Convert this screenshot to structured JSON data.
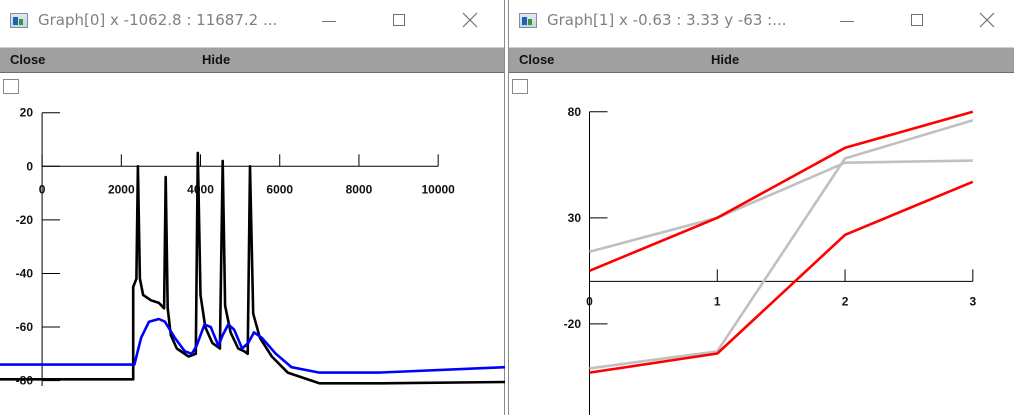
{
  "windows": [
    {
      "title": "Graph[0]  x -1062.8 : 11687.2  ...",
      "menu": {
        "close_label": "Close",
        "hide_label": "Hide"
      },
      "chart_data": {
        "type": "line",
        "title": "",
        "xlim": [
          -1062.8,
          11687.2
        ],
        "ylim": [
          -82,
          24
        ],
        "x_ticks": [
          0,
          2000,
          4000,
          6000,
          8000,
          10000
        ],
        "x_tick_labels": [
          "0",
          "2000",
          "4000",
          "6000",
          "8000",
          "10000"
        ],
        "y_ticks": [
          20,
          0,
          -20,
          -40,
          -60,
          -80
        ],
        "y_tick_labels": [
          "20",
          "0",
          "-20",
          "-40",
          "-60",
          "-80"
        ],
        "series": [
          {
            "color": "#000000",
            "points": [
              [
                -1062.8,
                -79.5
              ],
              [
                2300,
                -79.5
              ],
              [
                2300,
                -45
              ],
              [
                2380,
                -42
              ],
              [
                2420,
                0
              ],
              [
                2470,
                -42
              ],
              [
                2550,
                -48
              ],
              [
                2750,
                -50
              ],
              [
                2950,
                -51
              ],
              [
                3080,
                -53
              ],
              [
                3120,
                -4
              ],
              [
                3170,
                -53
              ],
              [
                3250,
                -63
              ],
              [
                3400,
                -68
              ],
              [
                3700,
                -71
              ],
              [
                3880,
                -70
              ],
              [
                3930,
                5
              ],
              [
                4000,
                -48
              ],
              [
                4120,
                -60
              ],
              [
                4300,
                -66
              ],
              [
                4490,
                -68
              ],
              [
                4560,
                2
              ],
              [
                4620,
                -52
              ],
              [
                4760,
                -62
              ],
              [
                4950,
                -68
              ],
              [
                5100,
                -69
              ],
              [
                5190,
                -70
              ],
              [
                5250,
                0
              ],
              [
                5330,
                -55
              ],
              [
                5500,
                -64
              ],
              [
                5800,
                -71
              ],
              [
                6200,
                -77
              ],
              [
                7000,
                -81
              ],
              [
                8500,
                -81
              ],
              [
                11687.2,
                -80.5
              ]
            ]
          },
          {
            "color": "#0000ff",
            "points": [
              [
                -1062.8,
                -74
              ],
              [
                2330,
                -74
              ],
              [
                2500,
                -64
              ],
              [
                2700,
                -58
              ],
              [
                2950,
                -57
              ],
              [
                3100,
                -58
              ],
              [
                3350,
                -64
              ],
              [
                3600,
                -69
              ],
              [
                3780,
                -70
              ],
              [
                3900,
                -67
              ],
              [
                4100,
                -59
              ],
              [
                4260,
                -60
              ],
              [
                4450,
                -67
              ],
              [
                4560,
                -63
              ],
              [
                4700,
                -59
              ],
              [
                4850,
                -61
              ],
              [
                5050,
                -68
              ],
              [
                5200,
                -66
              ],
              [
                5350,
                -62
              ],
              [
                5550,
                -64
              ],
              [
                5900,
                -70
              ],
              [
                6300,
                -75
              ],
              [
                7000,
                -77
              ],
              [
                8500,
                -77
              ],
              [
                11687.2,
                -75
              ]
            ]
          }
        ]
      }
    },
    {
      "title": "Graph[1]  x -0.63 : 3.33  y -63 :...",
      "menu": {
        "close_label": "Close",
        "hide_label": "Hide"
      },
      "chart_data": {
        "type": "line",
        "title": "",
        "xlim": [
          -0.63,
          3.33
        ],
        "ylim": [
          -63,
          95
        ],
        "x_ticks": [
          0,
          1,
          2,
          3
        ],
        "x_tick_labels": [
          "0",
          "1",
          "2",
          "3"
        ],
        "y_ticks": [
          80,
          30,
          -20
        ],
        "y_tick_labels": [
          "80",
          "30",
          "-20"
        ],
        "series": [
          {
            "color": "#c0c0c0",
            "points": [
              [
                0,
                14
              ],
              [
                1,
                30
              ],
              [
                2,
                56
              ],
              [
                3,
                57
              ]
            ]
          },
          {
            "color": "#c0c0c0",
            "points": [
              [
                0,
                -41
              ],
              [
                1,
                -33
              ],
              [
                2,
                58
              ],
              [
                3,
                76
              ]
            ]
          },
          {
            "color": "#ff0000",
            "points": [
              [
                0,
                5
              ],
              [
                1,
                30
              ],
              [
                2,
                63
              ],
              [
                3,
                80
              ]
            ]
          },
          {
            "color": "#ff0000",
            "points": [
              [
                0,
                -43
              ],
              [
                1,
                -34
              ],
              [
                2,
                22
              ],
              [
                3,
                47
              ]
            ]
          }
        ]
      }
    }
  ]
}
